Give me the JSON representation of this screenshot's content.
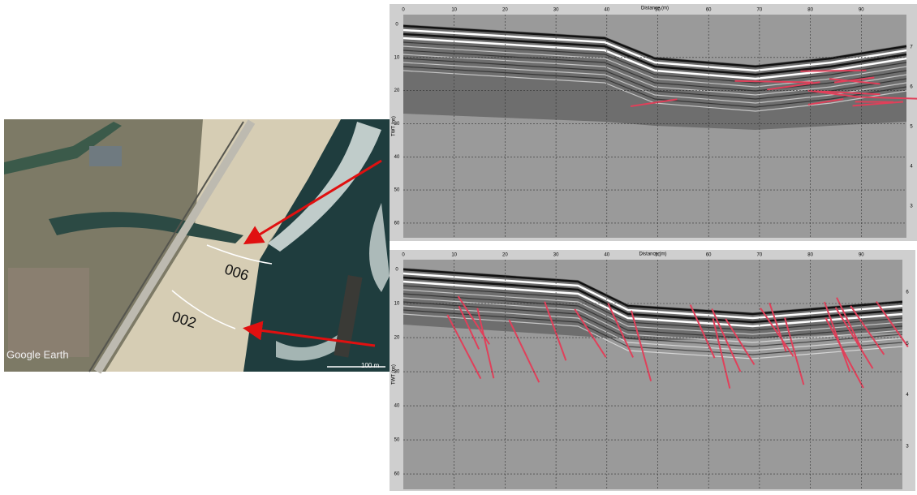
{
  "map": {
    "labels": [
      "006",
      "002"
    ],
    "watermark": "Google Earth",
    "scale": "100 m"
  },
  "panels": [
    {
      "axis_title": "Distance (m)",
      "y_title": "TWT (ns)",
      "x_ticks": [
        0,
        10,
        20,
        30,
        40,
        50,
        60,
        70,
        80,
        90
      ],
      "y_ticks": [
        0,
        10,
        20,
        30,
        40,
        50,
        60
      ],
      "right_ticks": [
        7,
        6,
        5,
        4,
        3
      ]
    },
    {
      "axis_title": "Distance (m)",
      "y_title": "TWT (ns)",
      "x_ticks": [
        0,
        10,
        20,
        30,
        40,
        50,
        60,
        70,
        80,
        90
      ],
      "y_ticks": [
        0,
        10,
        20,
        30,
        40,
        50,
        60
      ],
      "right_ticks": [
        6,
        5,
        4,
        3
      ]
    }
  ]
}
